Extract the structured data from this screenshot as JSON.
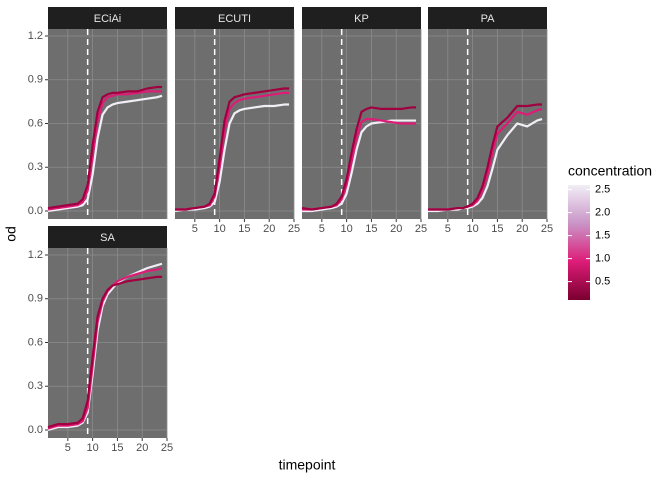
{
  "axes": {
    "x_label": "timepoint",
    "y_label": "od"
  },
  "legend": {
    "title": "concentration",
    "lim": [
      0.1,
      2.6
    ],
    "ticks": [
      0.5,
      1,
      1.5,
      2,
      2.5
    ],
    "labels": [
      "0.5",
      "1.0",
      "1.5",
      "2.0",
      "2.5"
    ],
    "colors": [
      "#7a0030",
      "#dd1c77",
      "#c994c7",
      "#f1eef6"
    ]
  },
  "chart_data": [
    {
      "type": "line",
      "title": "ECiAi",
      "vline": 9,
      "xlim": [
        1,
        25
      ],
      "ylim": [
        -0.055,
        1.248
      ],
      "xticks": [
        5,
        10,
        15,
        20,
        25
      ],
      "yticks": [
        {
          "value": 0,
          "label": "0.0"
        },
        0.3,
        0.6,
        0.9,
        1.2
      ],
      "x": [
        1,
        3,
        5,
        7,
        8,
        9,
        10,
        11,
        12,
        13,
        14,
        15,
        17,
        19,
        21,
        23,
        24
      ],
      "series": [
        {
          "color": "#f1eef6",
          "values": [
            0.0,
            0.01,
            0.02,
            0.03,
            0.04,
            0.08,
            0.25,
            0.5,
            0.66,
            0.71,
            0.73,
            0.74,
            0.75,
            0.76,
            0.77,
            0.78,
            0.79
          ]
        },
        {
          "color": "#dd1c77",
          "values": [
            0.01,
            0.02,
            0.03,
            0.04,
            0.06,
            0.14,
            0.38,
            0.62,
            0.74,
            0.78,
            0.79,
            0.8,
            0.8,
            0.81,
            0.82,
            0.82,
            0.82
          ]
        },
        {
          "color": "#a00040",
          "values": [
            0.02,
            0.03,
            0.04,
            0.05,
            0.08,
            0.18,
            0.45,
            0.68,
            0.78,
            0.8,
            0.81,
            0.81,
            0.82,
            0.82,
            0.84,
            0.85,
            0.85
          ]
        }
      ]
    },
    {
      "type": "line",
      "title": "ECUTI",
      "vline": 9,
      "xlim": [
        1,
        25
      ],
      "ylim": [
        -0.055,
        1.248
      ],
      "xticks": [
        5,
        10,
        15,
        20,
        25
      ],
      "yticks": [
        {
          "value": 0,
          "label": "0.0"
        },
        0.3,
        0.6,
        0.9,
        1.2
      ],
      "x": [
        1,
        3,
        5,
        7,
        8,
        9,
        10,
        11,
        12,
        13,
        14,
        15,
        17,
        19,
        21,
        23,
        24
      ],
      "series": [
        {
          "color": "#f1eef6",
          "values": [
            0.0,
            0.01,
            0.01,
            0.02,
            0.03,
            0.06,
            0.2,
            0.42,
            0.6,
            0.67,
            0.69,
            0.7,
            0.71,
            0.72,
            0.72,
            0.73,
            0.73
          ]
        },
        {
          "color": "#dd1c77",
          "values": [
            0.01,
            0.01,
            0.02,
            0.03,
            0.04,
            0.1,
            0.3,
            0.55,
            0.7,
            0.74,
            0.76,
            0.77,
            0.78,
            0.79,
            0.8,
            0.81,
            0.81
          ]
        },
        {
          "color": "#a00040",
          "values": [
            0.01,
            0.01,
            0.02,
            0.03,
            0.05,
            0.12,
            0.36,
            0.62,
            0.75,
            0.78,
            0.79,
            0.8,
            0.81,
            0.82,
            0.83,
            0.84,
            0.84
          ]
        }
      ]
    },
    {
      "type": "line",
      "title": "KP",
      "vline": 9,
      "xlim": [
        1,
        25
      ],
      "ylim": [
        -0.055,
        1.248
      ],
      "xticks": [
        5,
        10,
        15,
        20,
        25
      ],
      "yticks": [
        {
          "value": 0,
          "label": "0.0"
        },
        0.3,
        0.6,
        0.9,
        1.2
      ],
      "x": [
        1,
        3,
        5,
        7,
        8,
        9,
        10,
        11,
        12,
        13,
        14,
        15,
        17,
        19,
        21,
        23,
        24
      ],
      "series": [
        {
          "color": "#f1eef6",
          "values": [
            0.0,
            0.0,
            0.01,
            0.02,
            0.03,
            0.05,
            0.12,
            0.26,
            0.42,
            0.54,
            0.58,
            0.6,
            0.61,
            0.62,
            0.62,
            0.62,
            0.62
          ]
        },
        {
          "color": "#dd1c77",
          "values": [
            0.01,
            0.01,
            0.02,
            0.03,
            0.04,
            0.08,
            0.18,
            0.34,
            0.5,
            0.61,
            0.63,
            0.63,
            0.62,
            0.61,
            0.6,
            0.6,
            0.6
          ]
        },
        {
          "color": "#a00040",
          "values": [
            0.02,
            0.01,
            0.02,
            0.03,
            0.05,
            0.1,
            0.22,
            0.4,
            0.56,
            0.68,
            0.7,
            0.71,
            0.7,
            0.7,
            0.7,
            0.71,
            0.71
          ]
        }
      ]
    },
    {
      "type": "line",
      "title": "PA",
      "vline": 9,
      "xlim": [
        1,
        25
      ],
      "ylim": [
        -0.055,
        1.248
      ],
      "xticks": [
        5,
        10,
        15,
        20,
        25
      ],
      "yticks": [
        {
          "value": 0,
          "label": "0.0"
        },
        0.3,
        0.6,
        0.9,
        1.2
      ],
      "x": [
        1,
        3,
        5,
        7,
        8,
        9,
        10,
        11,
        12,
        13,
        14,
        15,
        17,
        19,
        21,
        23,
        24
      ],
      "series": [
        {
          "color": "#f1eef6",
          "values": [
            0.0,
            0.0,
            0.01,
            0.01,
            0.02,
            0.02,
            0.03,
            0.05,
            0.09,
            0.17,
            0.29,
            0.42,
            0.52,
            0.6,
            0.58,
            0.62,
            0.63
          ]
        },
        {
          "color": "#dd1c77",
          "values": [
            0.01,
            0.01,
            0.01,
            0.02,
            0.02,
            0.03,
            0.04,
            0.07,
            0.14,
            0.25,
            0.4,
            0.53,
            0.6,
            0.68,
            0.66,
            0.69,
            0.7
          ]
        },
        {
          "color": "#a00040",
          "values": [
            0.01,
            0.01,
            0.01,
            0.02,
            0.02,
            0.03,
            0.05,
            0.09,
            0.17,
            0.3,
            0.45,
            0.58,
            0.64,
            0.72,
            0.72,
            0.73,
            0.73
          ]
        }
      ]
    },
    {
      "type": "line",
      "title": "SA",
      "vline": 9,
      "xlim": [
        1,
        25
      ],
      "ylim": [
        -0.055,
        1.248
      ],
      "xticks": [
        5,
        10,
        15,
        20,
        25
      ],
      "yticks": [
        {
          "value": 0,
          "label": "0.0"
        },
        0.3,
        0.6,
        0.9,
        1.2
      ],
      "x": [
        1,
        3,
        5,
        7,
        8,
        9,
        10,
        11,
        12,
        13,
        14,
        15,
        17,
        19,
        21,
        23,
        24
      ],
      "series": [
        {
          "color": "#f1eef6",
          "values": [
            0.0,
            0.02,
            0.02,
            0.03,
            0.05,
            0.12,
            0.38,
            0.68,
            0.85,
            0.93,
            0.97,
            1.01,
            1.05,
            1.08,
            1.11,
            1.13,
            1.14
          ]
        },
        {
          "color": "#dd1c77",
          "values": [
            0.01,
            0.03,
            0.03,
            0.04,
            0.06,
            0.15,
            0.44,
            0.74,
            0.88,
            0.95,
            0.99,
            1.02,
            1.05,
            1.07,
            1.09,
            1.1,
            1.11
          ]
        },
        {
          "color": "#a00040",
          "values": [
            0.02,
            0.04,
            0.04,
            0.05,
            0.08,
            0.2,
            0.5,
            0.78,
            0.9,
            0.96,
            0.99,
            1.0,
            1.02,
            1.03,
            1.04,
            1.05,
            1.05
          ]
        }
      ]
    }
  ]
}
